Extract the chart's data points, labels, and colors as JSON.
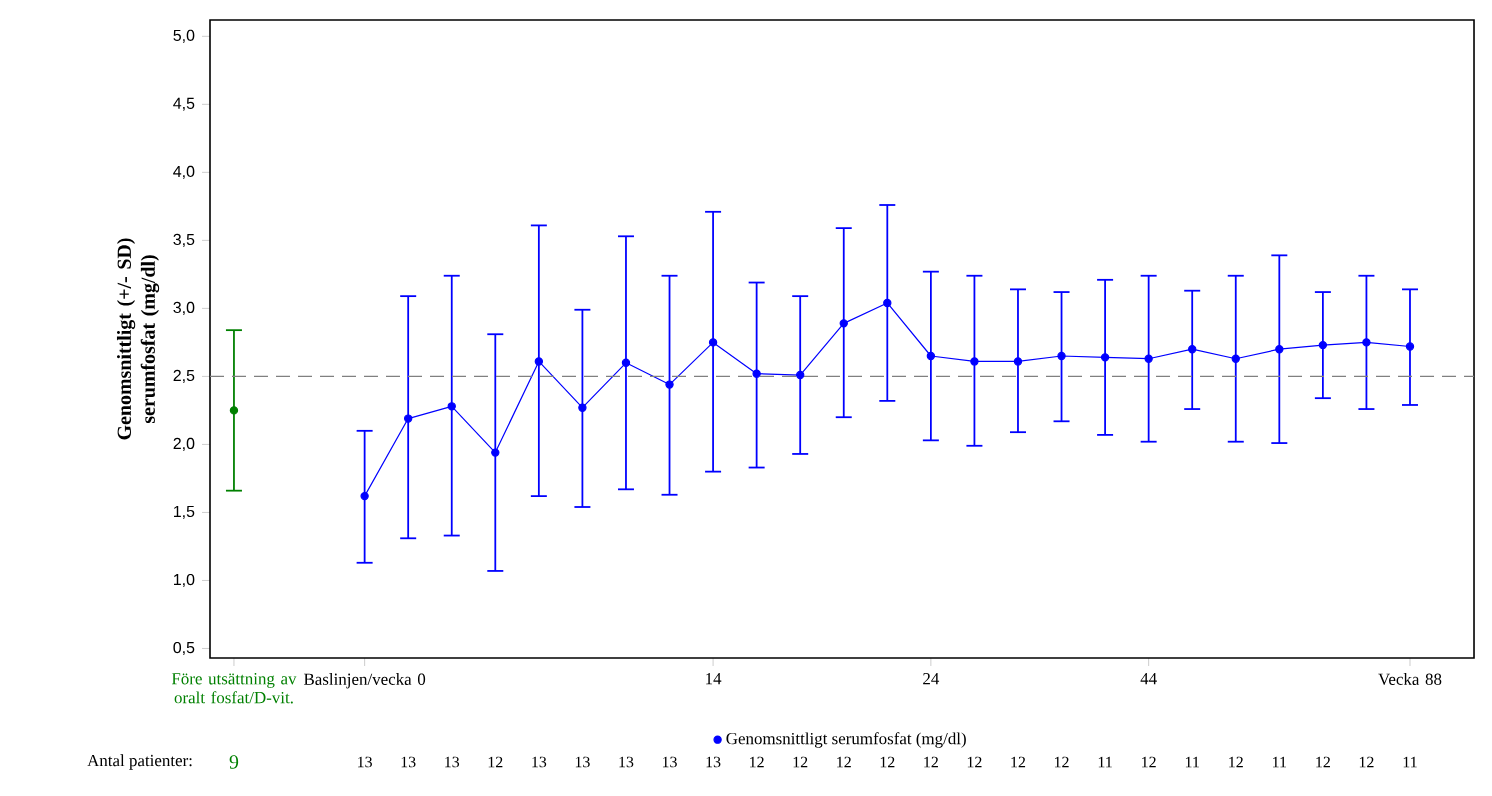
{
  "chart_data": {
    "type": "line",
    "ylabel": "Genomsnittligt (+/- SD) serumfosfat (mg/dl)",
    "categories": [
      "Före utsättning av oralt fosfat/D-vit.",
      null,
      null,
      "Baslinjen/vecka 0",
      null,
      null,
      null,
      null,
      null,
      null,
      null,
      "14",
      null,
      null,
      null,
      null,
      "24",
      null,
      null,
      null,
      null,
      "44",
      null,
      null,
      null,
      null,
      null,
      "Vecka 88"
    ],
    "series": [
      {
        "type": "scatter",
        "color": "#008000",
        "values": [
          2.25,
          null,
          null,
          null,
          null,
          null,
          null,
          null,
          null,
          null,
          null,
          null,
          null,
          null,
          null,
          null,
          null,
          null,
          null,
          null,
          null,
          null,
          null,
          null,
          null,
          null,
          null,
          null
        ],
        "errors": [
          [
            1.66,
            2.84
          ],
          null,
          null,
          null,
          null,
          null,
          null,
          null,
          null,
          null,
          null,
          null,
          null,
          null,
          null,
          null,
          null,
          null,
          null,
          null,
          null,
          null,
          null,
          null,
          null,
          null,
          null,
          null
        ]
      },
      {
        "name": "Genomsnittligt serumfosfat (mg/dl)",
        "color": "#0000ff",
        "values": [
          null,
          null,
          null,
          1.62,
          2.19,
          2.28,
          1.94,
          2.61,
          2.27,
          2.6,
          2.44,
          2.75,
          2.52,
          2.51,
          2.89,
          3.04,
          2.65,
          2.61,
          2.61,
          2.65,
          2.64,
          2.63,
          2.7,
          2.63,
          2.7,
          2.73,
          2.75,
          2.72
        ],
        "errors": [
          null,
          null,
          null,
          [
            1.13,
            2.1
          ],
          [
            1.31,
            3.09
          ],
          [
            1.33,
            3.24
          ],
          [
            1.07,
            2.81
          ],
          [
            1.62,
            3.61
          ],
          [
            1.54,
            2.99
          ],
          [
            1.67,
            3.53
          ],
          [
            1.63,
            3.24
          ],
          [
            1.8,
            3.71
          ],
          [
            1.83,
            3.19
          ],
          [
            1.93,
            3.09
          ],
          [
            2.2,
            3.59
          ],
          [
            2.32,
            3.76
          ],
          [
            2.03,
            3.27
          ],
          [
            1.99,
            3.24
          ],
          [
            2.09,
            3.14
          ],
          [
            2.17,
            3.12
          ],
          [
            2.07,
            3.21
          ],
          [
            2.02,
            3.24
          ],
          [
            2.26,
            3.13
          ],
          [
            2.02,
            3.24
          ],
          [
            2.01,
            3.39
          ],
          [
            2.34,
            3.12
          ],
          [
            2.26,
            3.24
          ],
          [
            2.29,
            3.14
          ]
        ]
      }
    ],
    "ylim": [
      0.43,
      5.12
    ],
    "yticks": [
      {
        "value": 0.5,
        "label": "0,5"
      },
      {
        "value": 1,
        "label": "1,0"
      },
      {
        "value": 1.5,
        "label": "1,5"
      },
      {
        "value": 2,
        "label": "2,0"
      },
      {
        "value": 2.5,
        "label": "2,5"
      },
      {
        "value": 3,
        "label": "3,0"
      },
      {
        "value": 3.5,
        "label": "3,5"
      },
      {
        "value": 4,
        "label": "4,0"
      },
      {
        "value": 4.5,
        "label": "4,5"
      },
      {
        "value": 5,
        "label": "5,0"
      }
    ],
    "ref_lines": [
      {
        "axis": "y",
        "value": 2.5,
        "color": "#808080",
        "line_style": "dashed"
      }
    ],
    "marker": "circle",
    "grid": false,
    "legend": "bottom",
    "annotations": [
      "Antal patienter:",
      "9",
      "13",
      "13",
      "13",
      "12",
      "13",
      "13",
      "13",
      "13",
      "13",
      "12",
      "12",
      "12",
      "12",
      "12",
      "12",
      "12",
      "12",
      "11",
      "12",
      "11",
      "12",
      "11",
      "12",
      "12",
      "11"
    ]
  }
}
